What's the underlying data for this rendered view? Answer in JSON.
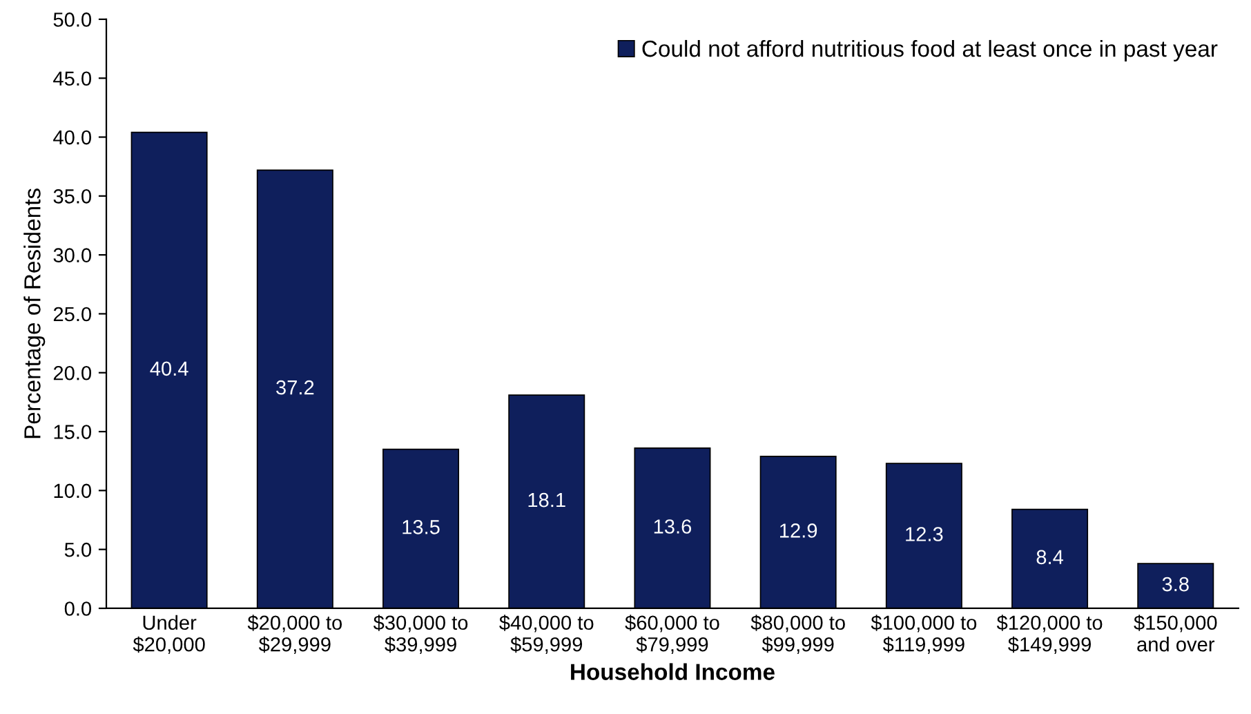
{
  "chart_data": {
    "type": "bar",
    "xlabel": "Household Income",
    "ylabel": "Percentage of Residents",
    "categories": [
      "Under\n$20,000",
      "$20,000 to\n$29,999",
      "$30,000 to\n$39,999",
      "$40,000 to\n$59,999",
      "$60,000 to\n$79,999",
      "$80,000 to\n$99,999",
      "$100,000 to\n$119,999",
      "$120,000 to\n$149,999",
      "$150,000\nand over"
    ],
    "series": [
      {
        "name": "Could not afford nutritious food at least once in past year",
        "color": "#0f1f5c",
        "values": [
          40.4,
          37.2,
          13.5,
          18.1,
          13.6,
          12.9,
          12.3,
          8.4,
          3.8
        ]
      }
    ],
    "ylim": [
      0,
      50
    ],
    "yticks": [
      {
        "value": 0,
        "label": "0.0"
      },
      {
        "value": 5,
        "label": "5.0"
      },
      {
        "value": 10,
        "label": "10.0"
      },
      {
        "value": 15,
        "label": "15.0"
      },
      {
        "value": 20,
        "label": "20.0"
      },
      {
        "value": 25,
        "label": "25.0"
      },
      {
        "value": 30,
        "label": "30.0"
      },
      {
        "value": 35,
        "label": "35.0"
      },
      {
        "value": 40,
        "label": "40.0"
      },
      {
        "value": 45,
        "label": "45.0"
      },
      {
        "value": 50,
        "label": "50.0"
      }
    ],
    "data_labels": true,
    "grid": false,
    "legend": "top right"
  }
}
